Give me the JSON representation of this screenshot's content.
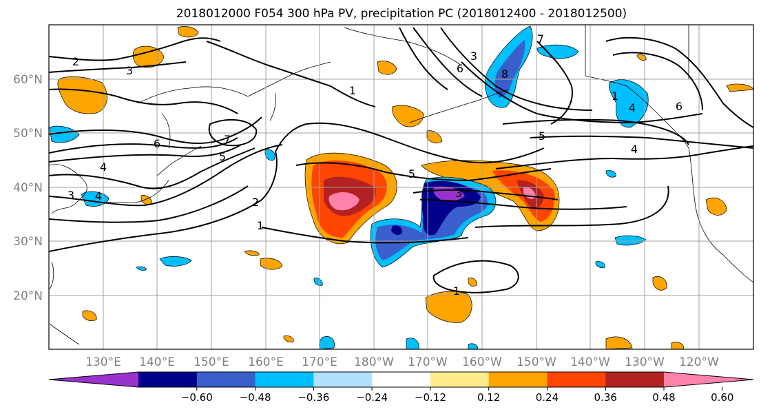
{
  "title": "2018012000 F054 300 hPa PV, precipitation PC (2018012400 - 2018012500)",
  "lat_labels": [
    "60°N",
    "50°N",
    "40°N",
    "30°N",
    "20°N"
  ],
  "lon_labels": [
    "130°E",
    "140°E",
    "150°E",
    "160°E",
    "170°E",
    "180°W",
    "170°W",
    "160°W",
    "150°W",
    "140°W",
    "130°W",
    "120°W"
  ],
  "colorbar": {
    "ticks": [
      "−0.60",
      "−0.48",
      "−0.36",
      "−0.24",
      "−0.12",
      "0.12",
      "0.24",
      "0.36",
      "0.48",
      "0.60"
    ],
    "colors": [
      "#9932cc",
      "#00008b",
      "#3a5fcd",
      "#00bfff",
      "#b0e2ff",
      "#ffffff",
      "#ffec8b",
      "#ffa500",
      "#ff4500",
      "#b22222",
      "#ff82ab"
    ]
  },
  "contour_labels": [
    "2",
    "3",
    "1",
    "6",
    "7",
    "5",
    "4",
    "4",
    "3",
    "2",
    "1",
    "5",
    "3",
    "5",
    "4",
    "1",
    "3",
    "6",
    "8",
    "7",
    "6",
    "4",
    "1"
  ]
}
